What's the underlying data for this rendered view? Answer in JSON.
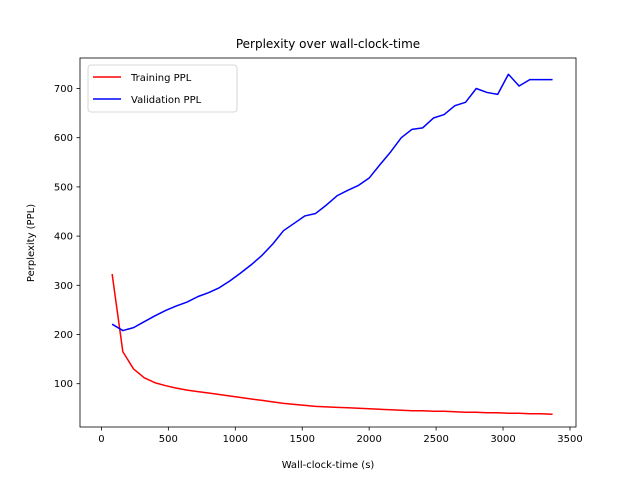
{
  "chart_data": {
    "type": "line",
    "title": "Perplexity over wall-clock-time",
    "xlabel": "Wall-clock-time (s)",
    "ylabel": "Perplexity (PPL)",
    "xlim": [
      -160,
      3545
    ],
    "ylim": [
      12,
      762
    ],
    "xticks": [
      0,
      500,
      1000,
      1500,
      2000,
      2500,
      3000,
      3500
    ],
    "yticks": [
      100,
      200,
      300,
      400,
      500,
      600,
      700
    ],
    "grid": false,
    "legend_position": "top-left",
    "series": [
      {
        "name": "Training PPL",
        "color": "#ff0000",
        "x": [
          80,
          160,
          240,
          320,
          400,
          480,
          560,
          640,
          720,
          800,
          880,
          960,
          1040,
          1120,
          1200,
          1280,
          1360,
          1440,
          1520,
          1600,
          1680,
          1760,
          1840,
          1920,
          2000,
          2080,
          2160,
          2240,
          2320,
          2400,
          2480,
          2560,
          2640,
          2720,
          2800,
          2880,
          2960,
          3040,
          3120,
          3200,
          3280,
          3370
        ],
        "values": [
          323,
          165,
          130,
          112,
          102,
          96,
          91,
          87,
          84,
          81,
          78,
          75,
          72,
          69,
          66,
          63,
          60,
          58,
          56,
          54,
          53,
          52,
          51,
          50,
          49,
          48,
          47,
          46,
          45,
          45,
          44,
          44,
          43,
          42,
          42,
          41,
          41,
          40,
          40,
          39,
          39,
          38
        ]
      },
      {
        "name": "Validation PPL",
        "color": "#0000ff",
        "x": [
          80,
          160,
          240,
          320,
          400,
          480,
          560,
          640,
          720,
          800,
          880,
          960,
          1040,
          1120,
          1200,
          1280,
          1360,
          1440,
          1520,
          1600,
          1680,
          1760,
          1840,
          1920,
          2000,
          2080,
          2160,
          2240,
          2320,
          2400,
          2480,
          2560,
          2640,
          2720,
          2800,
          2880,
          2960,
          3040,
          3120,
          3200,
          3280,
          3370
        ],
        "values": [
          221,
          208,
          214,
          226,
          238,
          249,
          258,
          266,
          277,
          285,
          295,
          309,
          325,
          342,
          361,
          384,
          411,
          426,
          441,
          446,
          463,
          482,
          493,
          503,
          518,
          545,
          571,
          600,
          617,
          620,
          640,
          647,
          665,
          672,
          700,
          692,
          688,
          729,
          705,
          718,
          718,
          718
        ]
      }
    ]
  }
}
